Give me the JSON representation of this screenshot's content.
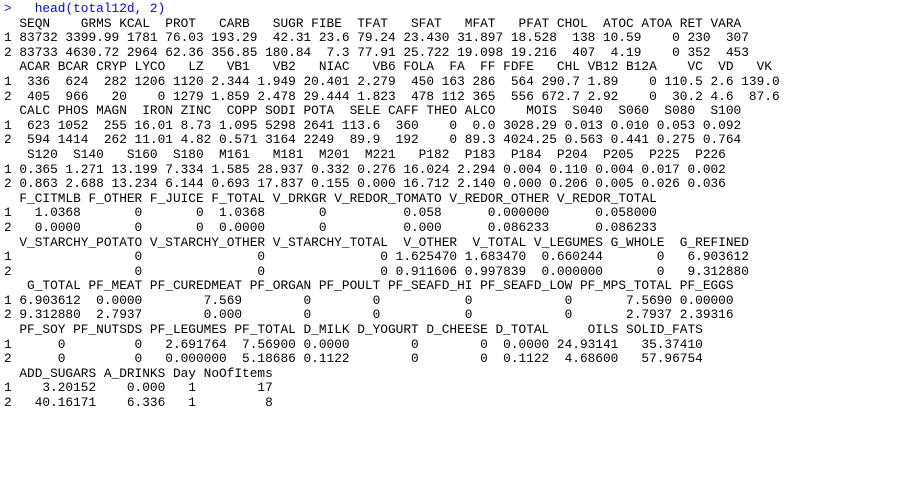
{
  "prompt": ">",
  "command": "head(total12d, 2)",
  "output": [
    "  SEQN    GRMS KCAL  PROT   CARB   SUGR FIBE  TFAT   SFAT   MFAT   PFAT CHOL  ATOC ATOA RET VARA",
    "1 83732 3399.99 1781 76.03 193.29  42.31 23.6 79.24 23.430 31.897 18.528  138 10.59    0 230  307",
    "2 83733 4630.72 2964 62.36 356.85 180.84  7.3 77.91 25.722 19.098 19.216  407  4.19    0 352  453",
    "  ACAR BCAR CRYP LYCO   LZ   VB1   VB2   NIAC   VB6 FOLA  FA  FF FDFE   CHL VB12 B12A    VC  VD   VK",
    "1  336  624  282 1206 1120 2.344 1.949 20.401 2.279  450 163 286  564 290.7 1.89    0 110.5 2.6 139.0",
    "2  405  966   20    0 1279 1.859 2.478 29.444 1.823  478 112 365  556 672.7 2.92    0  30.2 4.6  87.6",
    "  CALC PHOS MAGN  IRON ZINC  COPP SODI POTA  SELE CAFF THEO ALCO    MOIS  S040  S060  S080  S100",
    "1  623 1052  255 16.01 8.73 1.095 5298 2641 113.6  360    0  0.0 3028.29 0.013 0.010 0.053 0.092",
    "2  594 1414  262 11.01 4.82 0.571 3164 2249  89.9  192    0 89.3 4024.25 0.563 0.441 0.275 0.764",
    "   S120  S140   S160  S180  M161   M181  M201  M221   P182  P183  P184  P204  P205  P225  P226",
    "1 0.365 1.271 13.199 7.334 1.585 28.937 0.332 0.276 16.024 2.294 0.004 0.110 0.004 0.017 0.002",
    "2 0.863 2.688 13.234 6.144 0.693 17.837 0.155 0.000 16.712 2.140 0.000 0.206 0.005 0.026 0.036",
    "  F_CITMLB F_OTHER F_JUICE F_TOTAL V_DRKGR V_REDOR_TOMATO V_REDOR_OTHER V_REDOR_TOTAL",
    "1   1.0368       0       0  1.0368       0          0.058      0.000000      0.058000",
    "2   0.0000       0       0  0.0000       0          0.000      0.086233      0.086233",
    "  V_STARCHY_POTATO V_STARCHY_OTHER V_STARCHY_TOTAL  V_OTHER  V_TOTAL V_LEGUMES G_WHOLE  G_REFINED",
    "1                0               0               0 1.625470 1.683470  0.660244       0   6.903612",
    "2                0               0               0 0.911606 0.997839  0.000000       0   9.312880",
    "   G_TOTAL PF_MEAT PF_CUREDMEAT PF_ORGAN PF_POULT PF_SEAFD_HI PF_SEAFD_LOW PF_MPS_TOTAL PF_EGGS",
    "1 6.903612  0.0000        7.569        0        0           0            0       7.5690 0.00000",
    "2 9.312880  2.7937        0.000        0        0           0            0       2.7937 2.39316",
    "  PF_SOY PF_NUTSDS PF_LEGUMES PF_TOTAL D_MILK D_YOGURT D_CHEESE D_TOTAL     OILS SOLID_FATS",
    "1      0         0   2.691764  7.56900 0.0000        0        0  0.0000 24.93141   35.37410",
    "2      0         0   0.000000  5.18686 0.1122        0        0  0.1122  4.68600   57.96754",
    "  ADD_SUGARS A_DRINKS Day NoOfItems",
    "1    3.20152    0.000   1        17",
    "2   40.16171    6.336   1         8"
  ]
}
